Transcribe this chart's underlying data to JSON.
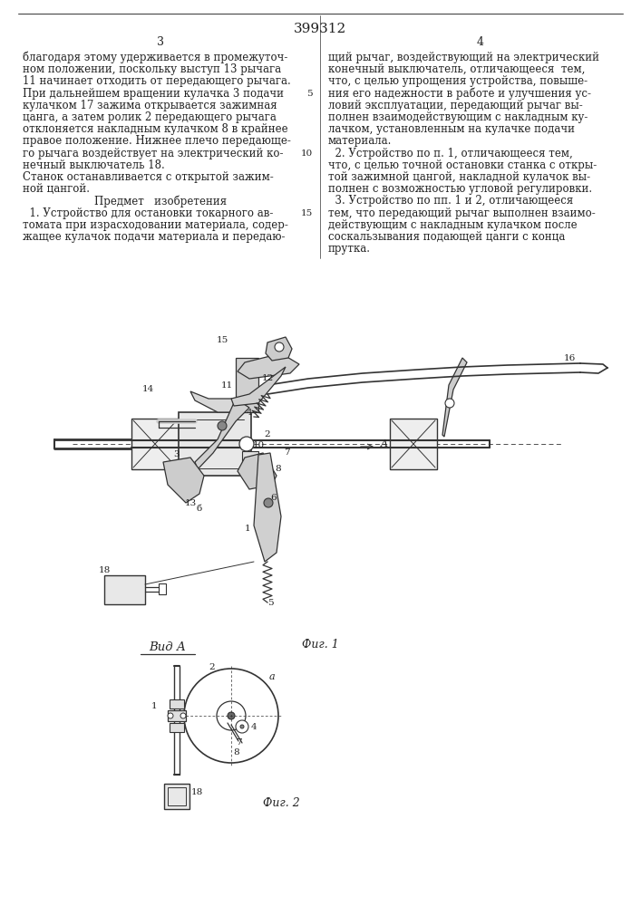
{
  "page_width": 7.07,
  "page_height": 10.0,
  "bg_color": "#ffffff",
  "line_color": "#333333",
  "text_color": "#222222",
  "patent_number": "399312",
  "col1_header": "3",
  "col2_header": "4",
  "fig1_caption": "Фиг. 1",
  "fig2_caption": "Фиг. 2",
  "vida_label": "Вид А",
  "col1_lines": [
    "благодаря этому удерживается в промежуточ-",
    "ном положении, поскольку выступ 13 рычага",
    "11 начинает отходить от передающего рычага.",
    "При дальнейшем вращении кулачка 3 подачи",
    "кулачком 17 зажима открывается зажимная",
    "цанга, а затем ролик 2 передающего рычага",
    "отклоняется накладным кулачком 8 в крайнее",
    "правое положение. Нижнее плечо передающе-",
    "го рычага воздействует на электрический ко-",
    "нечный выключатель 18.",
    "Станок останавливается с открытой зажим-",
    "ной цангой.",
    "    Предмет   изобретения",
    "  1. Устройство для остановки токарного ав-",
    "томата при израсходовании материала, содер-",
    "жащее кулачок подачи материала и передаю-"
  ],
  "col2_lines": [
    "щий рычаг, воздействующий на электрический",
    "конечный выключатель, отличающееся  тем,",
    "что, с целью упрощения устройства, повыше-",
    "ния его надежности в работе и улучшения ус-",
    "ловий эксплуатации, передающий рычаг вы-",
    "полнен взаимодействующим с накладным ку-",
    "лачком, установленным на кулачке подачи",
    "материала.",
    "  2. Устройство по п. 1, отличающееся тем,",
    "что, с целью точной остановки станка с откры-",
    "той зажимной цангой, накладной кулачок вы-",
    "полнен с возможностью угловой регулировки.",
    "  3. Устройство по пп. 1 и 2, отличающееся",
    "тем, что передающий рычаг выполнен взаимо-",
    "действующим с накладным кулачком после",
    "соскальзывания подающей цанги с конца",
    "прутка."
  ]
}
